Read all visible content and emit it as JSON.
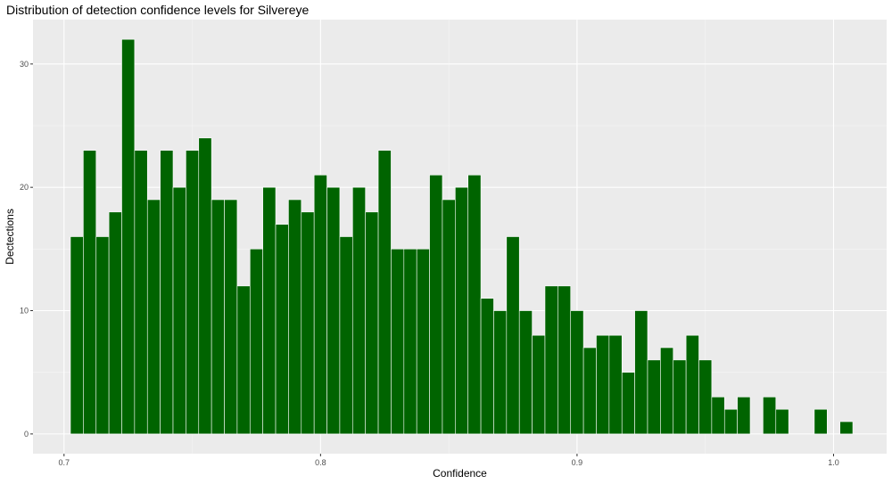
{
  "chart_data": {
    "type": "bar",
    "title": "Distribution of detection confidence levels for Silvereye",
    "xlabel": "Confidence",
    "ylabel": "Dectections",
    "xlim": [
      0.6879,
      1.0207
    ],
    "ylim": [
      -1.6,
      33.6
    ],
    "x_ticks": [
      {
        "value": 0.7,
        "label": "0.7"
      },
      {
        "value": 0.8,
        "label": "0.8"
      },
      {
        "value": 0.9,
        "label": "0.9"
      },
      {
        "value": 1.0,
        "label": "1.0"
      }
    ],
    "y_ticks": [
      {
        "value": 0,
        "label": "0"
      },
      {
        "value": 10,
        "label": "10"
      },
      {
        "value": 20,
        "label": "20"
      },
      {
        "value": 30,
        "label": "30"
      }
    ],
    "bin_width": 0.005,
    "bin_start": 0.7025,
    "counts": [
      16,
      23,
      16,
      18,
      32,
      23,
      19,
      23,
      20,
      23,
      24,
      19,
      19,
      12,
      15,
      20,
      17,
      19,
      18,
      21,
      20,
      16,
      20,
      18,
      23,
      15,
      15,
      15,
      21,
      19,
      20,
      21,
      11,
      10,
      16,
      10,
      8,
      12,
      12,
      10,
      7,
      8,
      8,
      5,
      10,
      6,
      7,
      6,
      8,
      6,
      3,
      2,
      3,
      0,
      3,
      2,
      0,
      0,
      2,
      0,
      1
    ],
    "bar_color": "#006400",
    "panel_background": "#ebebeb",
    "grid": true,
    "legend": "none"
  }
}
